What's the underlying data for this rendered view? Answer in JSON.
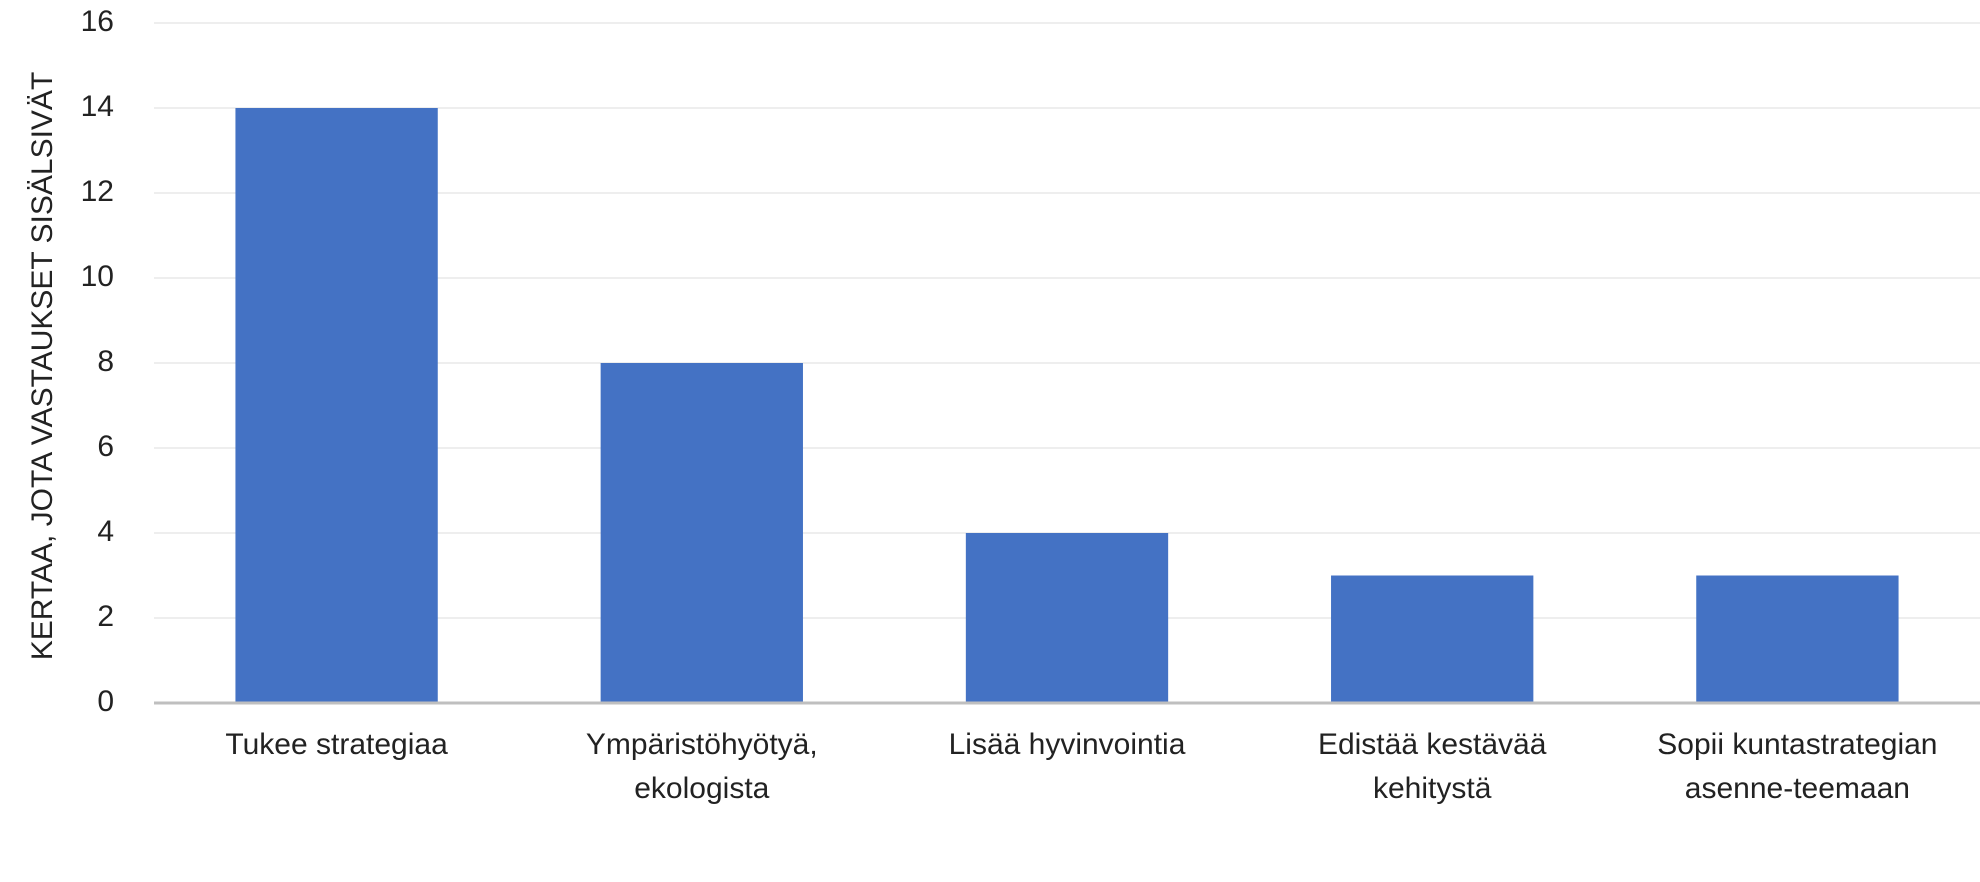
{
  "chart_data": {
    "type": "bar",
    "ylabel": "KERTAA, JOTA VASTAUKSET SISÄLSIVÄT",
    "categories": [
      "Tukee strategiaa",
      "Ympäristöhyötyä, ekologista",
      "Lisää hyvinvointia",
      "Edistää kestävää kehitystä",
      "Sopii kuntastrategian asenne-teemaan"
    ],
    "values": [
      14,
      8,
      4,
      3,
      3
    ],
    "color": "#4472c4",
    "ylim": [
      0,
      16
    ],
    "yticks": [
      0,
      2,
      4,
      6,
      8,
      10,
      12,
      14,
      16
    ],
    "grid": true
  }
}
